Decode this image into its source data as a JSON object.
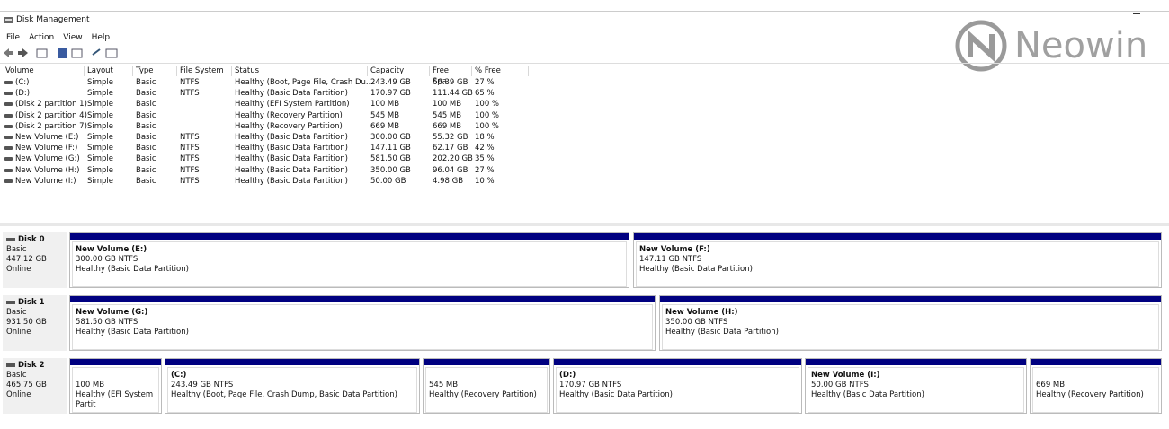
{
  "window": {
    "title": "Disk Management"
  },
  "menu": [
    "File",
    "Action",
    "View",
    "Help"
  ],
  "watermark": "Neowin",
  "volume_table": {
    "columns": [
      "Volume",
      "Layout",
      "Type",
      "File System",
      "Status",
      "Capacity",
      "Free Spa...",
      "% Free"
    ],
    "rows": [
      [
        "(C:)",
        "Simple",
        "Basic",
        "NTFS",
        "Healthy (Boot, Page File, Crash Du...",
        "243.49 GB",
        "66.39 GB",
        "27 %"
      ],
      [
        "(D:)",
        "Simple",
        "Basic",
        "NTFS",
        "Healthy (Basic Data Partition)",
        "170.97 GB",
        "111.44 GB",
        "65 %"
      ],
      [
        "(Disk 2 partition 1)",
        "Simple",
        "Basic",
        null,
        "Healthy (EFI System Partition)",
        "100 MB",
        "100 MB",
        "100 %"
      ],
      [
        "(Disk 2 partition 4)",
        "Simple",
        "Basic",
        null,
        "Healthy (Recovery Partition)",
        "545 MB",
        "545 MB",
        "100 %"
      ],
      [
        "(Disk 2 partition 7)",
        "Simple",
        "Basic",
        null,
        "Healthy (Recovery Partition)",
        "669 MB",
        "669 MB",
        "100 %"
      ],
      [
        "New Volume (E:)",
        "Simple",
        "Basic",
        "NTFS",
        "Healthy (Basic Data Partition)",
        "300.00 GB",
        "55.32 GB",
        "18 %"
      ],
      [
        "New Volume (F:)",
        "Simple",
        "Basic",
        "NTFS",
        "Healthy (Basic Data Partition)",
        "147.11 GB",
        "62.17 GB",
        "42 %"
      ],
      [
        "New Volume (G:)",
        "Simple",
        "Basic",
        "NTFS",
        "Healthy (Basic Data Partition)",
        "581.50 GB",
        "202.20 GB",
        "35 %"
      ],
      [
        "New Volume (H:)",
        "Simple",
        "Basic",
        "NTFS",
        "Healthy (Basic Data Partition)",
        "350.00 GB",
        "96.04 GB",
        "27 %"
      ],
      [
        "New Volume (I:)",
        "Simple",
        "Basic",
        "NTFS",
        "Healthy (Basic Data Partition)",
        "50.00 GB",
        "4.98 GB",
        "10 %"
      ]
    ]
  },
  "disks": [
    {
      "name": "Disk 0",
      "type": "Basic",
      "size": "447.12 GB",
      "status": "Online",
      "partitions": [
        {
          "name": "New Volume  (E:)",
          "size": "300.00 GB NTFS",
          "status": "Healthy (Basic Data Partition)"
        },
        {
          "name": "New Volume  (F:)",
          "size": "147.11 GB NTFS",
          "status": "Healthy (Basic Data Partition)"
        }
      ]
    },
    {
      "name": "Disk 1",
      "type": "Basic",
      "size": "931.50 GB",
      "status": "Online",
      "partitions": [
        {
          "name": "New Volume  (G:)",
          "size": "581.50 GB NTFS",
          "status": "Healthy (Basic Data Partition)"
        },
        {
          "name": "New Volume  (H:)",
          "size": "350.00 GB NTFS",
          "status": "Healthy (Basic Data Partition)"
        }
      ]
    },
    {
      "name": "Disk 2",
      "type": "Basic",
      "size": "465.75 GB",
      "status": "Online",
      "partitions": [
        {
          "size": "100 MB",
          "status": "Healthy (EFI System Partit"
        },
        {
          "name": "(C:)",
          "size": "243.49 GB NTFS",
          "status": "Healthy (Boot, Page File, Crash Dump, Basic Data Partition)"
        },
        {
          "size": "545 MB",
          "status": "Healthy (Recovery Partition)"
        },
        {
          "name": "(D:)",
          "size": "170.97 GB NTFS",
          "status": "Healthy (Basic Data Partition)"
        },
        {
          "name": "New Volume  (I:)",
          "size": "50.00 GB NTFS",
          "status": "Healthy (Basic Data Partition)"
        },
        {
          "size": "669 MB",
          "status": "Healthy (Recovery Partition)"
        }
      ]
    }
  ]
}
